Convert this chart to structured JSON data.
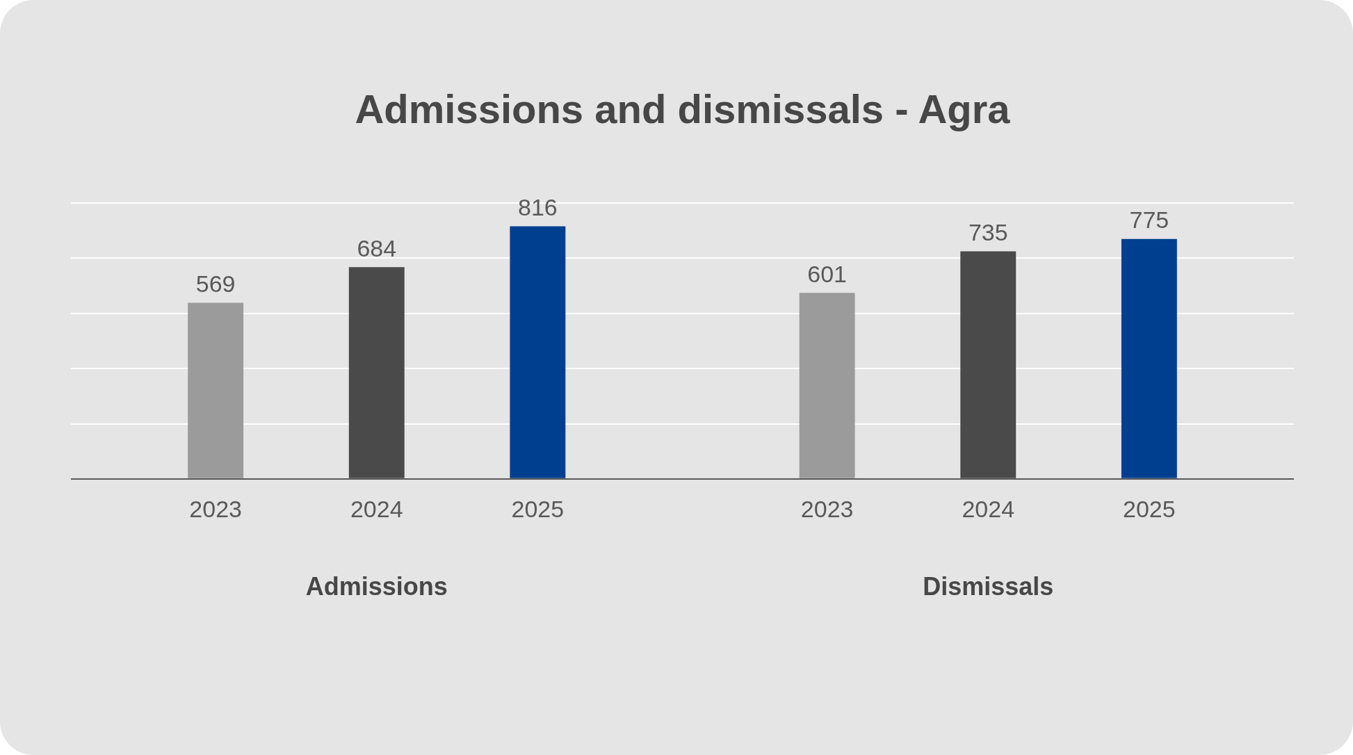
{
  "chart_data": {
    "type": "bar",
    "title": "Admissions and dismissals - Agra",
    "categories": [
      "Admissions",
      "Dismissals"
    ],
    "series": [
      {
        "name": "2023",
        "color": "#9b9b9b",
        "values": [
          569,
          601
        ]
      },
      {
        "name": "2024",
        "color": "#4a4a4a",
        "values": [
          684,
          735
        ]
      },
      {
        "name": "2025",
        "color": "#003f8f",
        "values": [
          816,
          775
        ]
      }
    ],
    "ylim": [
      0,
      892
    ],
    "yticks": [
      {
        "value": 0,
        "label": null
      },
      {
        "value": 178,
        "label": null
      },
      {
        "value": 357,
        "label": null
      },
      {
        "value": 535,
        "label": null
      },
      {
        "value": 714,
        "label": null
      },
      {
        "value": 892,
        "label": null
      }
    ],
    "grid": "y",
    "tick_labels": "x",
    "data_labels": true,
    "legend": false
  }
}
